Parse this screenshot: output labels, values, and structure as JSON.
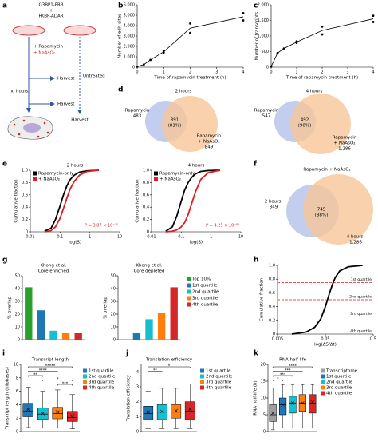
{
  "panel_labels": [
    "a",
    "b",
    "c",
    "d",
    "e",
    "f",
    "g",
    "h",
    "i",
    "j",
    "k"
  ],
  "schematic": {
    "construct_1": "G3BP1-FRB",
    "plus": "+",
    "construct_2": "FKBP-ADAR",
    "treatment_1": "+ Rapamycin",
    "treatment_2": "+ NaAsO₂",
    "duration": "'x' hours",
    "harvest": [
      "Harvest",
      "Harvest",
      "Harvest"
    ],
    "control": "Untreated"
  },
  "venn_d": [
    {
      "title": "2 hours",
      "left_label": "Rapamycin",
      "left_value": "483",
      "overlap_value": "391",
      "overlap_percent": "(81%)",
      "right_label": [
        "Rapamycin",
        "+ NaAsO₂"
      ],
      "right_value": "849"
    },
    {
      "title": "4 hours",
      "left_label": "Rapamycin",
      "left_value": "547",
      "overlap_value": "492",
      "overlap_percent": "(90%)",
      "right_label": [
        "Rapamycin",
        "+ NaAsO₂"
      ],
      "right_value": "1,286"
    }
  ],
  "venn_f": {
    "title": "Rapamycin + NaAsO₂",
    "left_label": "2 hours:",
    "left_value": "849",
    "overlap_value": "745",
    "overlap_percent": "(88%)",
    "right_label": "4 hours:",
    "right_value": "1,286"
  },
  "chart_data": [
    {
      "type": "line",
      "xlabel": "Time of rapamycin treatment (h)",
      "ylabel": "Number of edit sites",
      "color": "#000000",
      "points": {
        "x": [
          0,
          0.25,
          0.5,
          1,
          1,
          2,
          2,
          4,
          4
        ],
        "y": [
          50,
          250,
          700,
          1400,
          1550,
          3300,
          4200,
          5200,
          4500
        ]
      },
      "x": [
        0,
        0.25,
        0.5,
        1,
        2,
        4
      ],
      "values": [
        50,
        250,
        700,
        1480,
        3750,
        4850
      ],
      "xlim": [
        0,
        4
      ],
      "xticks": [
        0,
        1,
        2,
        3,
        4
      ],
      "ylim": [
        0,
        6000
      ],
      "yticks": [
        0,
        {
          "value": 1000,
          "label": "1,000"
        },
        {
          "value": 2000,
          "label": "2,000"
        },
        {
          "value": 3000,
          "label": "3,000"
        },
        {
          "value": 4000,
          "label": "4,000"
        },
        {
          "value": 5000,
          "label": "5,000"
        },
        {
          "value": 6000,
          "label": "6,000"
        }
      ]
    },
    {
      "type": "line",
      "xlabel": "Time of rapamycin treatment (h)",
      "ylabel": "Number of transcripts",
      "color": "#000000",
      "points": {
        "x": [
          0,
          0.25,
          0.5,
          1,
          1,
          2,
          2,
          4,
          4
        ],
        "y": [
          20,
          450,
          600,
          780,
          830,
          1050,
          1300,
          1650,
          1450
        ]
      },
      "x": [
        0,
        0.25,
        0.5,
        1,
        2,
        4
      ],
      "values": [
        20,
        450,
        600,
        805,
        1175,
        1550
      ],
      "xlim": [
        0,
        4
      ],
      "xticks": [
        0,
        1,
        2,
        3,
        4
      ],
      "ylim": [
        0,
        2000
      ],
      "yticks": [
        0,
        500,
        {
          "value": 1000,
          "label": "1,000"
        },
        {
          "value": 1500,
          "label": "1,500"
        },
        {
          "value": 2000,
          "label": "2,000"
        }
      ]
    },
    {
      "type": "line",
      "title": "2 hours",
      "xlabel": "log(S)",
      "ylabel": "Cumulative fraction",
      "xlog": true,
      "legend": "upper left",
      "x": [
        0.03,
        0.05,
        0.07,
        0.1,
        0.13,
        0.17,
        0.22,
        0.3,
        0.45,
        0.8,
        2
      ],
      "series": [
        {
          "name": "Rapamycin-only",
          "color": "#000000",
          "values": [
            0.01,
            0.06,
            0.2,
            0.42,
            0.6,
            0.75,
            0.85,
            0.92,
            0.97,
            0.99,
            1
          ]
        },
        {
          "name": "+ NaAsO₂",
          "color": "#e31a1c",
          "values": [
            0,
            0.02,
            0.08,
            0.22,
            0.38,
            0.55,
            0.7,
            0.82,
            0.92,
            0.98,
            1
          ]
        }
      ],
      "annotation": "P = 3.87 × 10⁻¹⁰",
      "xlim": [
        0.01,
        10
      ],
      "xticks": [
        0.01,
        0.1,
        1,
        10
      ],
      "ylim": [
        0,
        1
      ],
      "yticks": [
        0,
        0.2,
        0.4,
        0.6,
        0.8,
        {
          "value": 1,
          "label": "1.0"
        }
      ]
    },
    {
      "type": "line",
      "title": "4 hours",
      "xlabel": "log(S)",
      "ylabel": "Cumulative fraction",
      "xlog": true,
      "legend": "upper left",
      "x": [
        0.03,
        0.05,
        0.07,
        0.1,
        0.13,
        0.17,
        0.22,
        0.3,
        0.45,
        0.8,
        2
      ],
      "series": [
        {
          "name": "Rapamycin-only",
          "color": "#000000",
          "values": [
            0.01,
            0.08,
            0.25,
            0.5,
            0.68,
            0.8,
            0.88,
            0.94,
            0.98,
            0.995,
            1
          ]
        },
        {
          "name": "+ NaAsO₂",
          "color": "#e31a1c",
          "values": [
            0,
            0.01,
            0.03,
            0.08,
            0.15,
            0.28,
            0.45,
            0.65,
            0.85,
            0.96,
            1
          ]
        }
      ],
      "annotation": "P = 4.25 × 10⁻⁹⁷",
      "xlim": [
        0.01,
        10
      ],
      "xticks": [
        0.01,
        0.1,
        1,
        10
      ],
      "ylim": [
        0,
        1
      ],
      "yticks": [
        0,
        0.2,
        0.4,
        0.6,
        0.8,
        {
          "value": 1,
          "label": "1.0"
        }
      ]
    },
    {
      "type": "bar",
      "facet_heading": "Khong et al.",
      "categories": [
        "Core enriched",
        "Core depleted"
      ],
      "ylabel": "% overlap",
      "legend": "right",
      "series": [
        {
          "name": "Top 10%",
          "color": "#2ca02c",
          "values": [
            41,
            null
          ]
        },
        {
          "name": "1st quartile",
          "color": "#1f77b4",
          "values": [
            23,
            5
          ]
        },
        {
          "name": "2nd quartile",
          "color": "#17becf",
          "values": [
            7,
            16
          ]
        },
        {
          "name": "3rd quartile",
          "color": "#ff7f0e",
          "values": [
            5,
            21
          ]
        },
        {
          "name": "4th quartile",
          "color": "#d62728",
          "values": [
            5,
            41
          ]
        }
      ],
      "ylim": [
        0,
        50
      ],
      "yticks": [
        0,
        10,
        20,
        30,
        40,
        50
      ]
    },
    {
      "type": "line",
      "xlabel": "log(ΔS/Δt)",
      "ylabel": "Cumulative fraction",
      "xlog": true,
      "color": "#000000",
      "x": [
        0.01,
        0.02,
        0.03,
        0.04,
        0.05,
        0.06,
        0.07,
        0.08,
        0.1,
        0.15,
        0.3
      ],
      "values": [
        0,
        0.03,
        0.1,
        0.22,
        0.4,
        0.58,
        0.72,
        0.82,
        0.92,
        0.98,
        1
      ],
      "reference_lines": [
        0.75,
        0.5,
        0.25
      ],
      "reference_color": "#e31a1c",
      "region_labels": [
        "1st quartile",
        "2nd quartile",
        "3rd quartile",
        "4th quartile"
      ],
      "xlim": [
        0.005,
        0.5
      ],
      "xticks": [
        0.005,
        0.05,
        0.5
      ],
      "ylim": [
        0,
        1
      ],
      "yticks": [
        0,
        0.2,
        0.4,
        0.6,
        0.8,
        {
          "value": 1,
          "label": "1.0"
        }
      ]
    },
    {
      "type": "box",
      "title": "Transcript length",
      "ylabel": "Transcript length (kilobases)",
      "legend": "right",
      "series": [
        {
          "name": "1st quartile",
          "color": "#1f77b4",
          "whislo": 0.6,
          "q1": 2.2,
          "med": 3.0,
          "q3": 4.2,
          "whishi": 6.6,
          "mean": 3.3
        },
        {
          "name": "2nd quartile",
          "color": "#17becf",
          "whislo": 0.5,
          "q1": 1.8,
          "med": 2.6,
          "q3": 3.5,
          "whishi": 6.0,
          "mean": 2.7
        },
        {
          "name": "3rd quartile",
          "color": "#ff7f0e",
          "whislo": 0.5,
          "q1": 1.9,
          "med": 2.7,
          "q3": 3.6,
          "whishi": 6.2,
          "mean": 2.9
        },
        {
          "name": "4th quartile",
          "color": "#d62728",
          "whislo": 0.4,
          "q1": 1.5,
          "med": 2.1,
          "q3": 3.0,
          "whishi": 5.5,
          "mean": 2.3
        }
      ],
      "comparisons": [
        {
          "pair": [
            2,
            3
          ],
          "label": "***"
        },
        {
          "pair": [
            1,
            3
          ],
          "label": "*"
        },
        {
          "pair": [
            0,
            1
          ],
          "label": "**"
        },
        {
          "pair": [
            0,
            2
          ],
          "label": "****"
        },
        {
          "pair": [
            0,
            3
          ],
          "label": "*****"
        }
      ],
      "ylim": [
        0,
        10
      ],
      "yticks": [
        0,
        2,
        4,
        6,
        8,
        10
      ]
    },
    {
      "type": "box",
      "title": "Translation efficiency",
      "ylabel": "Translation efficiency",
      "legend": "right",
      "series": [
        {
          "name": "1st quartile",
          "color": "#1f77b4",
          "whislo": 0.2,
          "q1": 0.8,
          "med": 1.2,
          "q3": 1.7,
          "whishi": 2.7,
          "mean": 1.3
        },
        {
          "name": "2nd quartile",
          "color": "#17becf",
          "whislo": 0.2,
          "q1": 0.8,
          "med": 1.3,
          "q3": 1.8,
          "whishi": 2.9,
          "mean": 1.35
        },
        {
          "name": "3rd quartile",
          "color": "#ff7f0e",
          "whislo": 0.2,
          "q1": 0.9,
          "med": 1.3,
          "q3": 1.8,
          "whishi": 2.9,
          "mean": 1.4
        },
        {
          "name": "4th quartile",
          "color": "#d62728",
          "whislo": 0.2,
          "q1": 0.8,
          "med": 1.35,
          "q3": 2.0,
          "whishi": 3.2,
          "mean": 1.5
        }
      ],
      "comparisons": [
        {
          "pair": [
            0,
            1
          ],
          "label": "**"
        },
        {
          "pair": [
            0,
            3
          ],
          "label": "*"
        }
      ],
      "ylim": [
        0,
        4.5
      ],
      "yticks": [
        0,
        1,
        2,
        3,
        4
      ]
    },
    {
      "type": "box",
      "title": "RNA half-life",
      "ylabel": "RNA half-life (h)",
      "legend": "right",
      "series": [
        {
          "name": "Transcriptome",
          "color": "#9e9e9e",
          "whislo": 0.5,
          "q1": 3,
          "med": 5,
          "q3": 8,
          "whishi": 13,
          "mean": 5.5
        },
        {
          "name": "1st quartile",
          "color": "#1f77b4",
          "whislo": 1,
          "q1": 5,
          "med": 8,
          "q3": 10,
          "whishi": 14,
          "mean": 8
        },
        {
          "name": "2nd quartile",
          "color": "#17becf",
          "whislo": 1,
          "q1": 5.5,
          "med": 8.5,
          "q3": 10.5,
          "whishi": 14,
          "mean": 8.5
        },
        {
          "name": "3rd quartile",
          "color": "#ff7f0e",
          "whislo": 1,
          "q1": 6,
          "med": 8.5,
          "q3": 11,
          "whishi": 14,
          "mean": 8.5
        },
        {
          "name": "4th quartile",
          "color": "#d62728",
          "whislo": 1,
          "q1": 5.5,
          "med": 8.5,
          "q3": 11,
          "whishi": 14,
          "mean": 8.8
        }
      ],
      "comparisons": [
        {
          "pair": [
            0,
            1
          ],
          "label": "*"
        },
        {
          "pair": [
            0,
            2
          ],
          "label": "***"
        },
        {
          "pair": [
            0,
            3
          ],
          "label": "***"
        },
        {
          "pair": [
            0,
            4
          ],
          "label": "****"
        }
      ],
      "ylim": [
        0,
        20
      ],
      "yticks": [
        0,
        5,
        10,
        15,
        20
      ]
    }
  ]
}
